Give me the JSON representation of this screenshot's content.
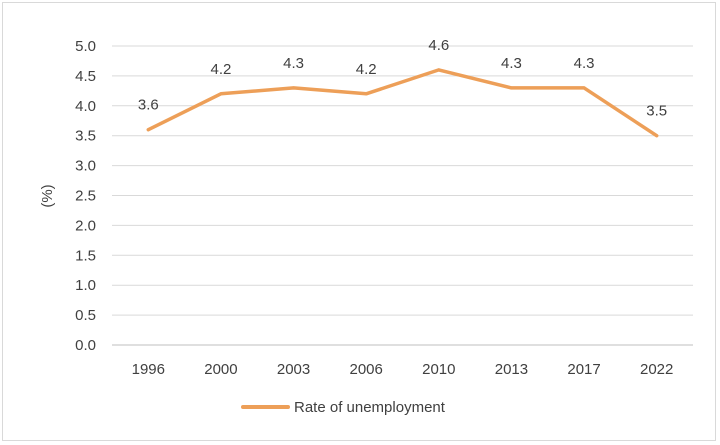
{
  "chart_data": {
    "type": "line",
    "title": "",
    "xlabel": "",
    "ylabel": "(%)",
    "categories": [
      "1996",
      "2000",
      "2003",
      "2006",
      "2010",
      "2013",
      "2017",
      "2022"
    ],
    "series": [
      {
        "name": "Rate of unemployment",
        "values": [
          3.6,
          4.2,
          4.3,
          4.2,
          4.6,
          4.3,
          4.3,
          3.5
        ],
        "data_labels": [
          "3.6",
          "4.2",
          "4.3",
          "4.2",
          "4.6",
          "4.3",
          "4.3",
          "3.5"
        ],
        "color": "#ED9F58"
      }
    ],
    "ylim": [
      0,
      5
    ],
    "yticks": [
      "0.0",
      "0.5",
      "1.0",
      "1.5",
      "2.0",
      "2.5",
      "3.0",
      "3.5",
      "4.0",
      "4.5",
      "5.0"
    ],
    "grid": true,
    "legend_position": "bottom"
  }
}
